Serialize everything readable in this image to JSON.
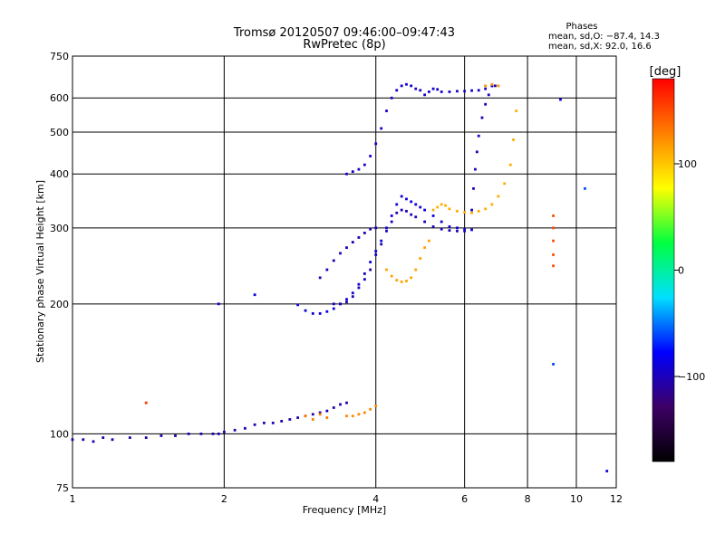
{
  "chart_data": {
    "type": "scatter",
    "title": "Tromsø 20120507 09:46:00–09:47:43",
    "subtitle": "RwPretec (8p)",
    "xlabel": "Frequency [MHz]",
    "ylabel": "Stationary phase Virtual Height [km]",
    "x_scale": "log",
    "y_scale": "log",
    "xlim": [
      1,
      12
    ],
    "ylim": [
      75,
      750
    ],
    "x_ticks": [
      1,
      2,
      4,
      6,
      8,
      10,
      12
    ],
    "y_ticks": [
      75,
      100,
      200,
      300,
      400,
      500,
      600,
      750
    ],
    "grid": true,
    "phases": {
      "title": "Phases",
      "line1": "mean, sd,O: −87.4, 14.3",
      "line2": "mean, sd,X:  92.0, 16.6"
    },
    "colorbar": {
      "label": "[deg]",
      "ticks": [
        "100",
        "0",
        "−100"
      ],
      "tick_values": [
        100,
        0,
        -100
      ],
      "range": [
        -180,
        180
      ],
      "palette": [
        "#000000",
        "#3d0066",
        "#0000ff",
        "#00e0ff",
        "#00ff40",
        "#ffff00",
        "#ff8000",
        "#ff0000"
      ]
    },
    "series": [
      {
        "phase": -105,
        "points": [
          [
            1.0,
            97
          ],
          [
            1.05,
            97
          ],
          [
            1.1,
            96
          ],
          [
            1.15,
            98
          ],
          [
            1.2,
            97
          ],
          [
            1.3,
            98
          ],
          [
            1.4,
            98
          ],
          [
            1.5,
            99
          ],
          [
            1.6,
            99
          ],
          [
            1.7,
            100
          ],
          [
            1.8,
            100
          ],
          [
            1.9,
            100
          ],
          [
            1.95,
            100
          ],
          [
            2.0,
            101
          ],
          [
            2.1,
            102
          ],
          [
            2.2,
            103
          ],
          [
            2.3,
            105
          ],
          [
            2.4,
            106
          ],
          [
            2.5,
            106
          ],
          [
            2.6,
            107
          ],
          [
            2.7,
            108
          ],
          [
            2.8,
            109
          ],
          [
            2.9,
            110
          ],
          [
            3.0,
            111
          ],
          [
            3.1,
            112
          ],
          [
            3.2,
            113
          ],
          [
            3.3,
            115
          ],
          [
            3.4,
            117
          ],
          [
            3.5,
            118
          ]
        ]
      },
      {
        "phase": -90,
        "points": [
          [
            2.8,
            199
          ],
          [
            2.9,
            193
          ],
          [
            3.0,
            190
          ],
          [
            3.1,
            190
          ],
          [
            3.2,
            192
          ],
          [
            3.3,
            195
          ],
          [
            3.4,
            200
          ],
          [
            3.5,
            205
          ],
          [
            3.6,
            212
          ],
          [
            3.7,
            222
          ],
          [
            3.8,
            235
          ],
          [
            3.9,
            250
          ],
          [
            4.0,
            265
          ],
          [
            4.1,
            280
          ],
          [
            4.2,
            300
          ],
          [
            4.3,
            320
          ],
          [
            4.4,
            340
          ],
          [
            4.5,
            355
          ],
          [
            4.6,
            350
          ],
          [
            4.7,
            345
          ],
          [
            4.8,
            340
          ],
          [
            4.9,
            335
          ],
          [
            5.0,
            330
          ],
          [
            5.2,
            320
          ],
          [
            5.4,
            310
          ],
          [
            5.6,
            302
          ],
          [
            5.8,
            300
          ],
          [
            6.0,
            298
          ],
          [
            6.2,
            297
          ]
        ]
      },
      {
        "phase": -100,
        "points": [
          [
            3.3,
            200
          ],
          [
            3.4,
            200
          ],
          [
            3.5,
            202
          ],
          [
            3.6,
            208
          ],
          [
            3.7,
            218
          ],
          [
            3.8,
            228
          ],
          [
            3.9,
            240
          ],
          [
            4.0,
            260
          ],
          [
            4.1,
            275
          ],
          [
            4.2,
            295
          ],
          [
            4.3,
            310
          ],
          [
            4.4,
            325
          ],
          [
            4.5,
            330
          ],
          [
            4.6,
            328
          ],
          [
            4.7,
            322
          ],
          [
            4.8,
            318
          ],
          [
            5.0,
            310
          ],
          [
            5.2,
            302
          ],
          [
            5.4,
            298
          ],
          [
            5.6,
            296
          ],
          [
            5.8,
            295
          ],
          [
            6.0,
            295
          ]
        ]
      },
      {
        "phase": -100,
        "points": [
          [
            3.1,
            230
          ],
          [
            3.2,
            240
          ],
          [
            3.3,
            252
          ],
          [
            3.4,
            262
          ],
          [
            3.5,
            270
          ],
          [
            3.6,
            278
          ],
          [
            3.7,
            285
          ],
          [
            3.8,
            292
          ],
          [
            3.9,
            298
          ],
          [
            4.0,
            300
          ]
        ]
      },
      {
        "phase": -95,
        "points": [
          [
            3.5,
            400
          ],
          [
            3.6,
            405
          ],
          [
            3.7,
            410
          ],
          [
            3.8,
            420
          ],
          [
            3.9,
            440
          ],
          [
            4.0,
            470
          ],
          [
            4.1,
            510
          ],
          [
            4.2,
            560
          ],
          [
            4.3,
            600
          ],
          [
            4.4,
            625
          ],
          [
            4.5,
            640
          ],
          [
            4.6,
            645
          ],
          [
            4.7,
            640
          ],
          [
            4.8,
            630
          ],
          [
            4.9,
            625
          ],
          [
            5.0,
            610
          ],
          [
            5.1,
            620
          ],
          [
            5.2,
            630
          ],
          [
            5.3,
            628
          ],
          [
            5.4,
            620
          ],
          [
            5.6,
            620
          ],
          [
            5.8,
            622
          ],
          [
            6.0,
            622
          ],
          [
            6.2,
            624
          ],
          [
            6.4,
            625
          ],
          [
            6.6,
            630
          ],
          [
            6.8,
            640
          ]
        ]
      },
      {
        "phase": -100,
        "points": [
          [
            6.2,
            330
          ],
          [
            6.25,
            370
          ],
          [
            6.3,
            410
          ],
          [
            6.35,
            450
          ],
          [
            6.4,
            490
          ],
          [
            6.5,
            540
          ],
          [
            6.6,
            580
          ],
          [
            6.7,
            610
          ],
          [
            6.8,
            640
          ],
          [
            6.9,
            640
          ]
        ]
      },
      {
        "phase": 125,
        "points": [
          [
            3.5,
            110
          ],
          [
            3.6,
            110
          ],
          [
            3.7,
            111
          ],
          [
            3.8,
            112
          ],
          [
            3.9,
            114
          ],
          [
            4.0,
            116
          ]
        ]
      },
      {
        "phase": 115,
        "points": [
          [
            4.2,
            240
          ],
          [
            4.3,
            232
          ],
          [
            4.4,
            227
          ],
          [
            4.5,
            225
          ],
          [
            4.6,
            226
          ],
          [
            4.7,
            230
          ],
          [
            4.8,
            240
          ],
          [
            4.9,
            255
          ],
          [
            5.0,
            270
          ],
          [
            5.1,
            280
          ]
        ]
      },
      {
        "phase": 110,
        "points": [
          [
            5.2,
            330
          ],
          [
            5.3,
            335
          ],
          [
            5.4,
            340
          ],
          [
            5.5,
            338
          ],
          [
            5.6,
            332
          ],
          [
            5.8,
            328
          ],
          [
            6.0,
            326
          ],
          [
            6.2,
            325
          ],
          [
            6.4,
            328
          ],
          [
            6.6,
            332
          ],
          [
            6.8,
            340
          ],
          [
            7.0,
            355
          ],
          [
            7.2,
            380
          ],
          [
            7.4,
            420
          ],
          [
            7.5,
            480
          ],
          [
            7.6,
            560
          ]
        ]
      },
      {
        "phase": 120,
        "points": [
          [
            6.6,
            640
          ],
          [
            6.8,
            645
          ],
          [
            7.0,
            640
          ]
        ]
      },
      {
        "phase": 130,
        "points": [
          [
            2.9,
            110
          ],
          [
            3.0,
            108
          ],
          [
            3.1,
            111
          ],
          [
            3.2,
            109
          ]
        ]
      },
      {
        "phase": 150,
        "points": [
          [
            9.0,
            320
          ],
          [
            9.0,
            300
          ],
          [
            9.0,
            280
          ],
          [
            9.0,
            260
          ],
          [
            9.0,
            245
          ]
        ]
      },
      {
        "phase": 160,
        "points": [
          [
            1.4,
            118
          ]
        ]
      },
      {
        "phase": -60,
        "points": [
          [
            9.0,
            145
          ],
          [
            10.4,
            370
          ]
        ]
      },
      {
        "phase": -90,
        "points": [
          [
            1.95,
            200
          ],
          [
            2.3,
            210
          ],
          [
            9.3,
            595
          ],
          [
            11.5,
            82
          ]
        ]
      }
    ]
  }
}
